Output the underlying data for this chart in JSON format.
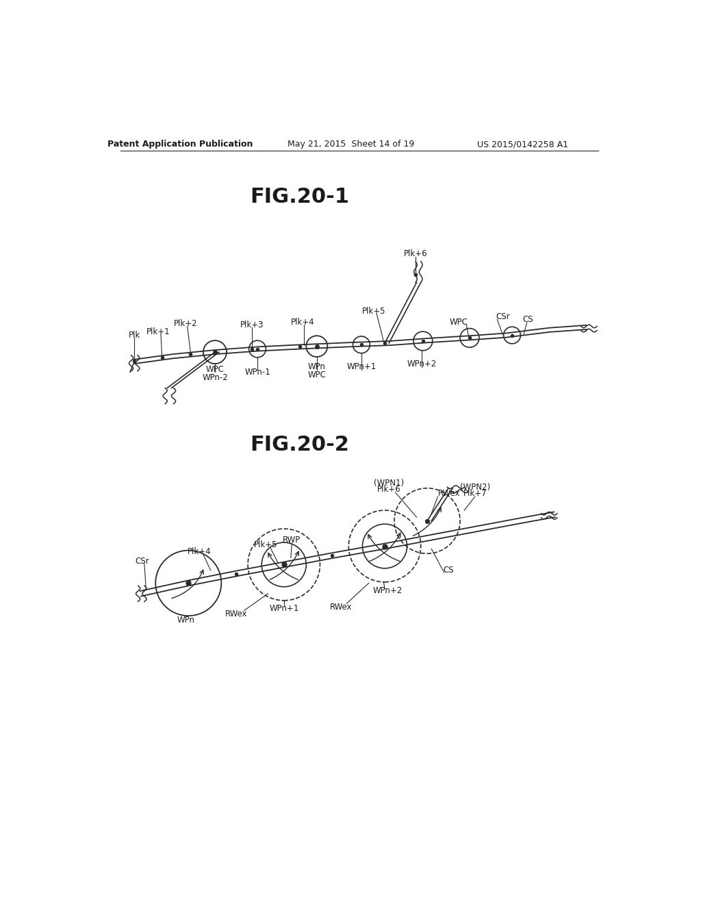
{
  "bg_color": "#ffffff",
  "text_color": "#1a1a1a",
  "lc": "#2a2a2a",
  "header_left": "Patent Application Publication",
  "header_mid": "May 21, 2015  Sheet 14 of 19",
  "header_right": "US 2015/0142258 A1",
  "fig1_title": "FIG.20-1",
  "fig2_title": "FIG.20-2"
}
